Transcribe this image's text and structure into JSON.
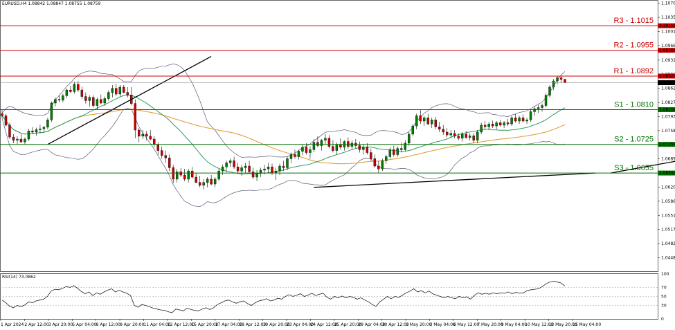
{
  "chart_data": [
    {
      "type": "candlestick",
      "title": "EURUSD,H4 1.08842 1.08847 1.08755 1.08759",
      "symbol": "EURUSD,H4",
      "ohlc_header": [
        "1.08842",
        "1.08847",
        "1.08755",
        "1.08759"
      ],
      "ylim": [
        1.0415,
        1.1078
      ],
      "y_tick_labels": [
        "1.10700",
        "1.10355",
        "1.10010",
        "1.09665",
        "1.09310",
        "1.08965",
        "1.08620",
        "1.08275",
        "1.07930",
        "1.07585",
        "1.07240",
        "1.06895",
        "1.06550",
        "1.06205",
        "1.05860",
        "1.05515",
        "1.05170",
        "1.04825",
        "1.04480"
      ],
      "x_tick_labels": [
        "1 Apr 2024",
        "2 Apr 12:00",
        "3 Apr 20:00",
        "5 Apr 04:00",
        "8 Apr 12:00",
        "9 Apr 20:00",
        "11 Apr 04:00",
        "12 Apr 12:00",
        "15 Apr 20:00",
        "17 Apr 04:00",
        "18 Apr 12:00",
        "19 Apr 20:00",
        "23 Apr 04:00",
        "24 Apr 12:00",
        "25 Apr 20:00",
        "29 Apr 04:00",
        "30 Apr 12:00",
        "1 May 20:00",
        "3 May 04:00",
        "6 May 12:00",
        "7 May 20:00",
        "9 May 04:00",
        "10 May 12:00",
        "13 May 20:00",
        "15 May 04:00"
      ],
      "levels": [
        {
          "name": "R3",
          "label": "R3 - 1.1015",
          "value": 1.1015,
          "tag": "1.10150",
          "color": "#cc0000"
        },
        {
          "name": "R2",
          "label": "R2 - 1.0955",
          "value": 1.0955,
          "tag": "1.09550",
          "color": "#cc0000"
        },
        {
          "name": "R1",
          "label": "R1 - 1.0892",
          "value": 1.0892,
          "tag": "1.08920",
          "color": "#cc0000"
        },
        {
          "name": "S1",
          "label": "S1 - 1.0810",
          "value": 1.081,
          "tag": "1.08100",
          "color": "#007000"
        },
        {
          "name": "S2",
          "label": "S2 - 1.0725",
          "value": 1.0725,
          "tag": "1.07250",
          "color": "#007000"
        },
        {
          "name": "S3",
          "label": "S3 - 1.0655",
          "value": 1.0655,
          "tag": "1.06550",
          "color": "#007000"
        }
      ],
      "current_price": {
        "value": 1.08759,
        "tag": "1.08759"
      },
      "trendlines": [
        {
          "x": [
            12,
            55
          ],
          "y": [
            1.0725,
            1.094
          ]
        },
        {
          "x": [
            82,
            156
          ],
          "y": [
            1.062,
            1.0655
          ]
        },
        {
          "x": [
            160,
            266
          ],
          "y": [
            1.0655,
            1.0833
          ]
        }
      ],
      "candles": [
        [
          1.08,
          1.081,
          1.0789,
          1.0795
        ],
        [
          1.0795,
          1.08,
          1.0768,
          1.0772
        ],
        [
          1.0772,
          1.0778,
          1.0738,
          1.0743
        ],
        [
          1.0743,
          1.075,
          1.0728,
          1.0735
        ],
        [
          1.0735,
          1.0745,
          1.0725,
          1.0738
        ],
        [
          1.0738,
          1.075,
          1.0729,
          1.0731
        ],
        [
          1.0731,
          1.0742,
          1.0725,
          1.0738
        ],
        [
          1.0738,
          1.0763,
          1.0733,
          1.0758
        ],
        [
          1.0758,
          1.0767,
          1.075,
          1.0755
        ],
        [
          1.0755,
          1.0766,
          1.0746,
          1.0761
        ],
        [
          1.0761,
          1.0773,
          1.0753,
          1.0763
        ],
        [
          1.0763,
          1.077,
          1.0755,
          1.0767
        ],
        [
          1.0767,
          1.079,
          1.0762,
          1.0785
        ],
        [
          1.0785,
          1.083,
          1.078,
          1.0826
        ],
        [
          1.0826,
          1.084,
          1.0818,
          1.0835
        ],
        [
          1.0835,
          1.0845,
          1.0828,
          1.0833
        ],
        [
          1.0833,
          1.0849,
          1.0828,
          1.0844
        ],
        [
          1.0844,
          1.0862,
          1.0838,
          1.0858
        ],
        [
          1.0858,
          1.0868,
          1.085,
          1.0854
        ],
        [
          1.0854,
          1.0878,
          1.0849,
          1.0872
        ],
        [
          1.0872,
          1.088,
          1.0853,
          1.0858
        ],
        [
          1.0858,
          1.0866,
          1.0836,
          1.0842
        ],
        [
          1.0842,
          1.0852,
          1.0825,
          1.0832
        ],
        [
          1.0832,
          1.0845,
          1.0818,
          1.084
        ],
        [
          1.084,
          1.0845,
          1.0815,
          1.082
        ],
        [
          1.082,
          1.084,
          1.081,
          1.0835
        ],
        [
          1.0835,
          1.0847,
          1.0823,
          1.0826
        ],
        [
          1.0826,
          1.0842,
          1.0819,
          1.0837
        ],
        [
          1.0837,
          1.0857,
          1.0832,
          1.0852
        ],
        [
          1.0852,
          1.087,
          1.084,
          1.0862
        ],
        [
          1.0862,
          1.0873,
          1.0843,
          1.0848
        ],
        [
          1.0848,
          1.087,
          1.0843,
          1.0865
        ],
        [
          1.0865,
          1.087,
          1.085,
          1.0852
        ],
        [
          1.0852,
          1.0865,
          1.084,
          1.0846
        ],
        [
          1.0846,
          1.0865,
          1.082,
          1.0825
        ],
        [
          1.0825,
          1.0835,
          1.074,
          1.076
        ],
        [
          1.076,
          1.0765,
          1.073,
          1.0745
        ],
        [
          1.0745,
          1.076,
          1.0738,
          1.075
        ],
        [
          1.075,
          1.0758,
          1.0735,
          1.0745
        ],
        [
          1.0745,
          1.076,
          1.0735,
          1.0738
        ],
        [
          1.0738,
          1.0745,
          1.0718,
          1.0725
        ],
        [
          1.0725,
          1.073,
          1.07,
          1.071
        ],
        [
          1.071,
          1.072,
          1.069,
          1.0698
        ],
        [
          1.0698,
          1.071,
          1.068,
          1.0692
        ],
        [
          1.0692,
          1.07,
          1.066,
          1.0668
        ],
        [
          1.0668,
          1.0675,
          1.063,
          1.064
        ],
        [
          1.064,
          1.0665,
          1.0632,
          1.0658
        ],
        [
          1.0658,
          1.0667,
          1.0645,
          1.065
        ],
        [
          1.065,
          1.0665,
          1.0635,
          1.064
        ],
        [
          1.064,
          1.0665,
          1.0632,
          1.066
        ],
        [
          1.066,
          1.067,
          1.0642,
          1.0645
        ],
        [
          1.0645,
          1.0655,
          1.063,
          1.0632
        ],
        [
          1.0632,
          1.0648,
          1.062,
          1.0625
        ],
        [
          1.0625,
          1.064,
          1.0615,
          1.0632
        ],
        [
          1.0632,
          1.0645,
          1.062,
          1.064
        ],
        [
          1.064,
          1.065,
          1.0625,
          1.0628
        ],
        [
          1.0628,
          1.0645,
          1.062,
          1.064
        ],
        [
          1.064,
          1.0665,
          1.0635,
          1.066
        ],
        [
          1.066,
          1.0676,
          1.065,
          1.067
        ],
        [
          1.067,
          1.0685,
          1.0658,
          1.068
        ],
        [
          1.068,
          1.069,
          1.067,
          1.0685
        ],
        [
          1.0685,
          1.0695,
          1.0665,
          1.067
        ],
        [
          1.067,
          1.068,
          1.0655,
          1.066
        ],
        [
          1.066,
          1.0675,
          1.0648,
          1.0668
        ],
        [
          1.0668,
          1.068,
          1.0655,
          1.0672
        ],
        [
          1.0672,
          1.0685,
          1.0655,
          1.0658
        ],
        [
          1.0658,
          1.0668,
          1.064,
          1.0645
        ],
        [
          1.0645,
          1.0662,
          1.0635,
          1.0655
        ],
        [
          1.0655,
          1.0668,
          1.0645,
          1.0662
        ],
        [
          1.0662,
          1.0675,
          1.0652,
          1.0665
        ],
        [
          1.0665,
          1.068,
          1.0655,
          1.067
        ],
        [
          1.067,
          1.0678,
          1.065,
          1.0655
        ],
        [
          1.0655,
          1.0668,
          1.0638,
          1.066
        ],
        [
          1.066,
          1.0678,
          1.065,
          1.0672
        ],
        [
          1.0672,
          1.0685,
          1.066,
          1.0668
        ],
        [
          1.0668,
          1.0695,
          1.0662,
          1.069
        ],
        [
          1.069,
          1.0705,
          1.068,
          1.07
        ],
        [
          1.07,
          1.0712,
          1.069,
          1.0695
        ],
        [
          1.0695,
          1.0712,
          1.0688,
          1.0708
        ],
        [
          1.0708,
          1.0725,
          1.0698,
          1.0718
        ],
        [
          1.0718,
          1.0728,
          1.07,
          1.0705
        ],
        [
          1.0705,
          1.072,
          1.069,
          1.0712
        ],
        [
          1.0712,
          1.0738,
          1.0706,
          1.073
        ],
        [
          1.073,
          1.0745,
          1.0718,
          1.0722
        ],
        [
          1.0722,
          1.0738,
          1.071,
          1.0735
        ],
        [
          1.0735,
          1.075,
          1.0725,
          1.074
        ],
        [
          1.074,
          1.0748,
          1.0715,
          1.072
        ],
        [
          1.072,
          1.0735,
          1.0705,
          1.071
        ],
        [
          1.071,
          1.073,
          1.07,
          1.0725
        ],
        [
          1.0725,
          1.074,
          1.0712,
          1.0718
        ],
        [
          1.0718,
          1.0735,
          1.071,
          1.0732
        ],
        [
          1.0732,
          1.0742,
          1.0715,
          1.072
        ],
        [
          1.072,
          1.0735,
          1.0712,
          1.0728
        ],
        [
          1.0728,
          1.0738,
          1.0715,
          1.0722
        ],
        [
          1.0722,
          1.0732,
          1.0705,
          1.0712
        ],
        [
          1.0712,
          1.0725,
          1.07,
          1.0718
        ],
        [
          1.0718,
          1.0728,
          1.07,
          1.0705
        ],
        [
          1.0705,
          1.0715,
          1.0685,
          1.069
        ],
        [
          1.069,
          1.07,
          1.0668,
          1.0672
        ],
        [
          1.0672,
          1.0685,
          1.0655,
          1.0665
        ],
        [
          1.0665,
          1.069,
          1.066,
          1.0685
        ],
        [
          1.0685,
          1.07,
          1.0678,
          1.0695
        ],
        [
          1.0695,
          1.0718,
          1.069,
          1.0712
        ],
        [
          1.0712,
          1.0722,
          1.0695,
          1.07
        ],
        [
          1.07,
          1.072,
          1.0695,
          1.0715
        ],
        [
          1.0715,
          1.073,
          1.0705,
          1.0712
        ],
        [
          1.0712,
          1.0735,
          1.0708,
          1.0728
        ],
        [
          1.0728,
          1.0755,
          1.0722,
          1.075
        ],
        [
          1.075,
          1.0775,
          1.0745,
          1.077
        ],
        [
          1.077,
          1.08,
          1.0762,
          1.0795
        ],
        [
          1.0795,
          1.081,
          1.0775,
          1.0782
        ],
        [
          1.0782,
          1.0795,
          1.077,
          1.079
        ],
        [
          1.079,
          1.08,
          1.0772,
          1.0775
        ],
        [
          1.0775,
          1.079,
          1.0765,
          1.0785
        ],
        [
          1.0785,
          1.0792,
          1.0762,
          1.0768
        ],
        [
          1.0768,
          1.078,
          1.0755,
          1.0762
        ],
        [
          1.0762,
          1.0772,
          1.0748,
          1.0755
        ],
        [
          1.0755,
          1.0765,
          1.0742,
          1.0748
        ],
        [
          1.0748,
          1.076,
          1.074,
          1.0752
        ],
        [
          1.0752,
          1.076,
          1.074,
          1.0745
        ],
        [
          1.0745,
          1.0752,
          1.0735,
          1.074
        ],
        [
          1.074,
          1.0755,
          1.0732,
          1.075
        ],
        [
          1.075,
          1.0758,
          1.0738,
          1.0742
        ],
        [
          1.0742,
          1.0752,
          1.0735,
          1.0746
        ],
        [
          1.0746,
          1.0752,
          1.0728,
          1.0735
        ],
        [
          1.0735,
          1.076,
          1.0728,
          1.0755
        ],
        [
          1.0755,
          1.0778,
          1.075,
          1.0772
        ],
        [
          1.0772,
          1.0782,
          1.0762,
          1.0768
        ],
        [
          1.0768,
          1.078,
          1.076,
          1.0775
        ],
        [
          1.0775,
          1.0783,
          1.0765,
          1.077
        ],
        [
          1.077,
          1.0782,
          1.0762,
          1.0778
        ],
        [
          1.0778,
          1.0785,
          1.0768,
          1.0772
        ],
        [
          1.0772,
          1.0782,
          1.0765,
          1.0778
        ],
        [
          1.0778,
          1.0788,
          1.077,
          1.0775
        ],
        [
          1.0775,
          1.0795,
          1.077,
          1.079
        ],
        [
          1.079,
          1.08,
          1.0778,
          1.0782
        ],
        [
          1.0782,
          1.0795,
          1.0775,
          1.079
        ],
        [
          1.079,
          1.0798,
          1.0778,
          1.0782
        ],
        [
          1.0782,
          1.079,
          1.0775,
          1.0785
        ],
        [
          1.0785,
          1.081,
          1.078,
          1.0805
        ],
        [
          1.0805,
          1.0818,
          1.0795,
          1.0812
        ],
        [
          1.0812,
          1.0822,
          1.0802,
          1.0815
        ],
        [
          1.0815,
          1.0825,
          1.0805,
          1.082
        ],
        [
          1.082,
          1.085,
          1.0815,
          1.0845
        ],
        [
          1.0845,
          1.087,
          1.084,
          1.0865
        ],
        [
          1.0865,
          1.0885,
          1.0858,
          1.088
        ],
        [
          1.088,
          1.0892,
          1.0872,
          1.0888
        ],
        [
          1.0888,
          1.0893,
          1.0875,
          1.0884
        ],
        [
          1.08842,
          1.08847,
          1.08755,
          1.08759
        ]
      ],
      "rsi": {
        "label": "RSI(14) 73.0862",
        "value": 73.0862,
        "ylim": [
          0,
          100
        ],
        "y_ticks": [
          "100",
          "70",
          "50",
          "30",
          "0"
        ],
        "levels": [
          70,
          50,
          30
        ],
        "values": [
          42,
          36,
          28,
          25,
          30,
          27,
          31,
          38,
          36,
          40,
          42,
          44,
          50,
          62,
          66,
          65,
          68,
          72,
          70,
          74,
          68,
          61,
          56,
          60,
          52,
          58,
          55,
          60,
          64,
          67,
          60,
          64,
          60,
          57,
          52,
          30,
          26,
          32,
          30,
          27,
          24,
          22,
          20,
          19,
          16,
          14,
          22,
          20,
          18,
          24,
          21,
          19,
          18,
          22,
          25,
          21,
          25,
          32,
          36,
          40,
          42,
          38,
          35,
          38,
          40,
          34,
          30,
          36,
          40,
          42,
          45,
          40,
          42,
          46,
          44,
          50,
          54,
          50,
          53,
          56,
          50,
          53,
          57,
          52,
          55,
          57,
          48,
          44,
          50,
          47,
          51,
          47,
          50,
          48,
          44,
          47,
          42,
          38,
          32,
          28,
          38,
          44,
          50,
          45,
          50,
          48,
          53,
          58,
          62,
          67,
          60,
          63,
          58,
          62,
          56,
          53,
          50,
          47,
          50,
          47,
          45,
          50,
          47,
          49,
          44,
          52,
          58,
          55,
          57,
          55,
          58,
          56,
          58,
          57,
          60,
          56,
          59,
          57,
          58,
          63,
          65,
          66,
          67,
          72,
          78,
          82,
          84,
          82,
          80,
          73
        ]
      }
    }
  ]
}
